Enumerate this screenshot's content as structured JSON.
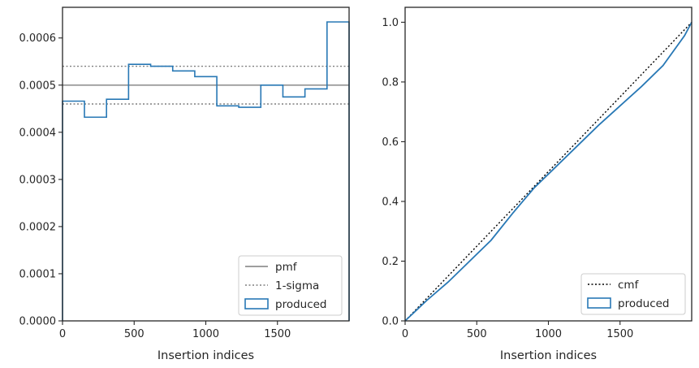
{
  "colors": {
    "produced": "#2878b5",
    "reference": "#7f7f7f",
    "cmf": "#000000",
    "axes": "#262626"
  },
  "chart_data": [
    {
      "type": "step",
      "xlabel": "Insertion indices",
      "ylabel": "",
      "xlim": [
        0,
        2000
      ],
      "ylim": [
        0,
        0.000665
      ],
      "xticks": [
        0,
        500,
        1000,
        1500
      ],
      "yticks": [
        0,
        0.0001,
        0.0002,
        0.0003,
        0.0004,
        0.0005,
        0.0006
      ],
      "ytick_labels": [
        "0.0000",
        "0.0001",
        "0.0002",
        "0.0003",
        "0.0004",
        "0.0005",
        "0.0006"
      ],
      "legend_position": "lower right",
      "grid": false,
      "series": [
        {
          "name": "pmf",
          "style": "solid",
          "color": "#7f7f7f",
          "y": 0.0005
        },
        {
          "name": "1-sigma",
          "style": "dotted",
          "color": "#7f7f7f",
          "y": [
            0.00046,
            0.00054
          ]
        },
        {
          "name": "produced",
          "style": "step",
          "color": "#2878b5",
          "bin_edges": [
            0,
            153,
            307,
            461,
            615,
            769,
            923,
            1077,
            1230,
            1384,
            1538,
            1692,
            1846,
            2000
          ],
          "values": [
            0.000466,
            0.000432,
            0.00047,
            0.000544,
            0.00054,
            0.00053,
            0.000518,
            0.000456,
            0.000453,
            0.0005,
            0.000475,
            0.000492,
            0.000634
          ]
        }
      ]
    },
    {
      "type": "line",
      "xlabel": "Insertion indices",
      "ylabel": "",
      "xlim": [
        0,
        2000
      ],
      "ylim": [
        0,
        1.05
      ],
      "xticks": [
        0,
        500,
        1000,
        1500
      ],
      "yticks": [
        0,
        0.2,
        0.4,
        0.6,
        0.8,
        1.0
      ],
      "ytick_labels": [
        "0.0",
        "0.2",
        "0.4",
        "0.6",
        "0.8",
        "1.0"
      ],
      "legend_position": "lower right",
      "grid": false,
      "series": [
        {
          "name": "cmf",
          "style": "dotted",
          "color": "#000000",
          "x": [
            0,
            2000
          ],
          "y": [
            0,
            1
          ]
        },
        {
          "name": "produced",
          "style": "step",
          "color": "#2878b5",
          "x": [
            0,
            150,
            300,
            450,
            600,
            750,
            900,
            1050,
            1200,
            1350,
            1500,
            1650,
            1800,
            1950,
            2000
          ],
          "y": [
            0,
            0.068,
            0.13,
            0.2,
            0.27,
            0.36,
            0.445,
            0.515,
            0.585,
            0.655,
            0.72,
            0.785,
            0.855,
            0.955,
            1.0
          ]
        }
      ]
    }
  ]
}
